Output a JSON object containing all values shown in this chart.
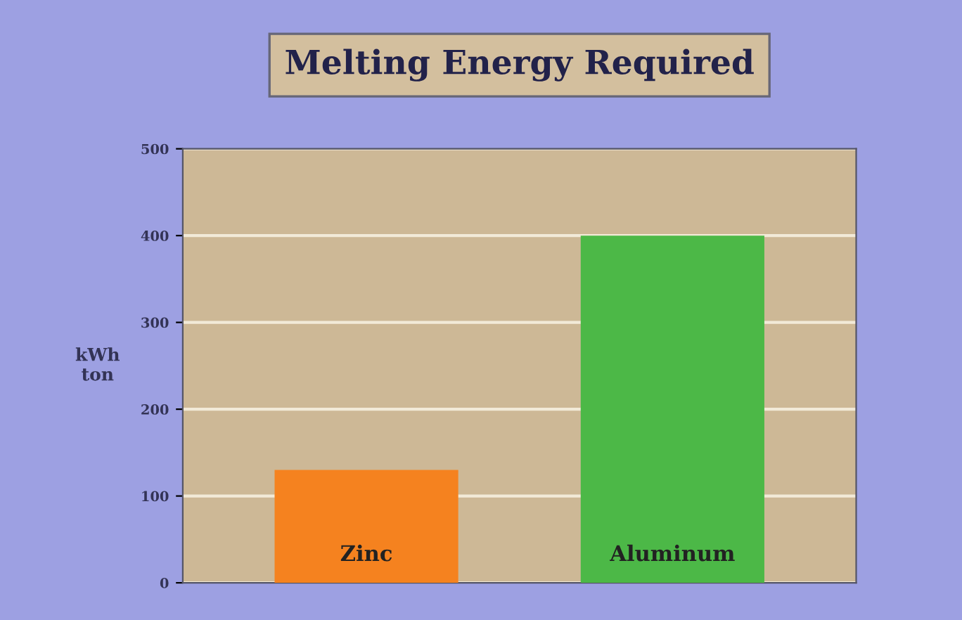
{
  "chart_data": {
    "type": "bar",
    "title": "Melting Energy Required",
    "ylabel": "kWh\nton",
    "categories": [
      "Zinc",
      "Aluminum"
    ],
    "values": [
      130,
      400
    ],
    "colors": [
      "#f5821f",
      "#4cb847"
    ],
    "ylim": [
      0,
      500
    ],
    "yticks": [
      0,
      100,
      200,
      300,
      400,
      500
    ],
    "grid": "y"
  }
}
